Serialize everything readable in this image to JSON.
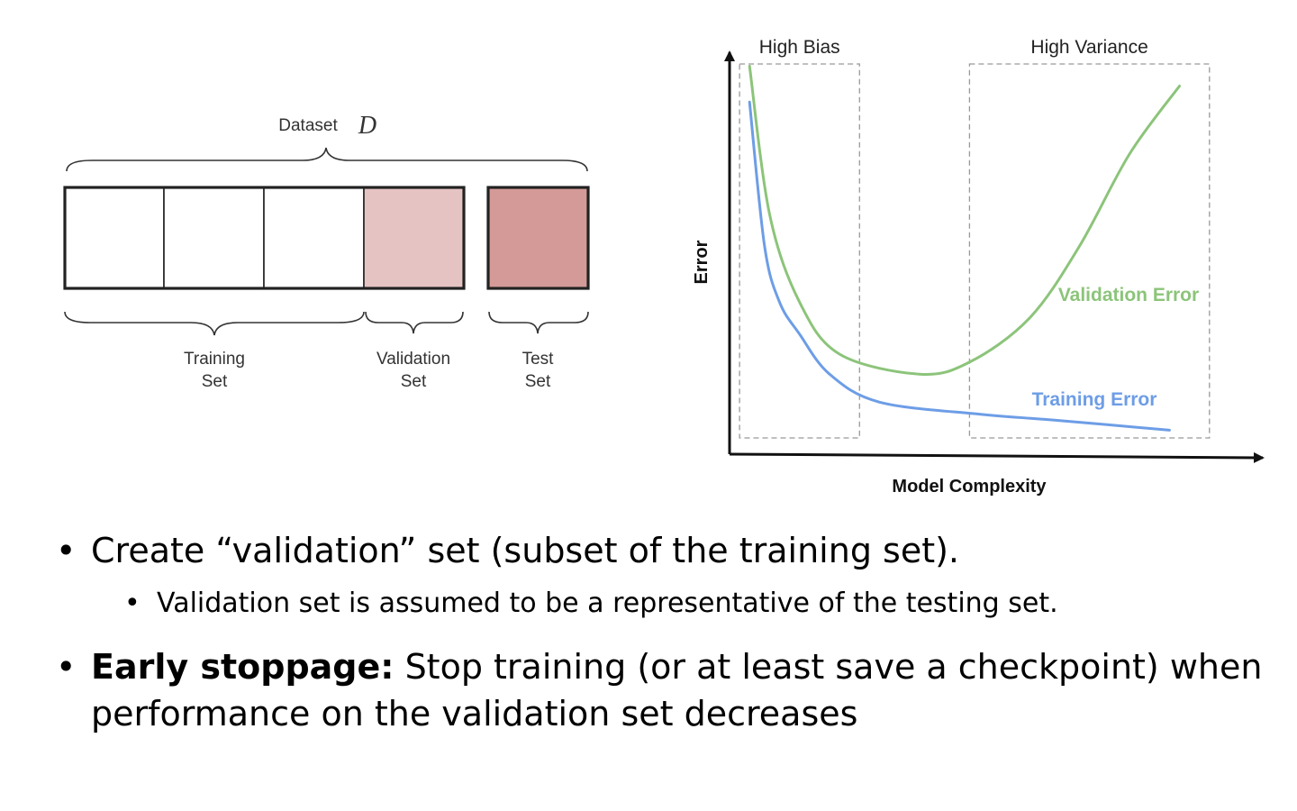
{
  "dataset": {
    "label": "Dataset",
    "symbol": "D",
    "training_label": [
      "Training",
      "Set"
    ],
    "validation_label": [
      "Validation",
      "Set"
    ],
    "test_label": [
      "Test",
      "Set"
    ],
    "colors": {
      "validation_fill": "#e6c3c3",
      "test_fill": "#d49a98",
      "stroke": "#222222"
    }
  },
  "chart_data": {
    "type": "line",
    "xlabel": "Model Complexity",
    "ylabel": "Error",
    "regions": [
      {
        "label": "High Bias",
        "x_range": [
          0.02,
          0.26
        ]
      },
      {
        "label": "High Variance",
        "x_range": [
          0.48,
          0.96
        ]
      }
    ],
    "series": [
      {
        "name": "Validation Error",
        "color": "#8cc47a",
        "points": [
          [
            0.04,
            0.97
          ],
          [
            0.08,
            0.6
          ],
          [
            0.14,
            0.38
          ],
          [
            0.22,
            0.25
          ],
          [
            0.38,
            0.2
          ],
          [
            0.48,
            0.23
          ],
          [
            0.6,
            0.34
          ],
          [
            0.7,
            0.52
          ],
          [
            0.8,
            0.75
          ],
          [
            0.9,
            0.92
          ]
        ]
      },
      {
        "name": "Training Error",
        "color": "#6d9de6",
        "points": [
          [
            0.04,
            0.88
          ],
          [
            0.07,
            0.52
          ],
          [
            0.1,
            0.38
          ],
          [
            0.14,
            0.3
          ],
          [
            0.2,
            0.2
          ],
          [
            0.3,
            0.13
          ],
          [
            0.5,
            0.1
          ],
          [
            0.65,
            0.085
          ],
          [
            0.88,
            0.06
          ]
        ]
      }
    ]
  },
  "bullets": {
    "b1": "Create “validation” set (subset of the training set).",
    "b1_sub": "Validation set is assumed to be a representative of the testing set.",
    "b2_bold": "Early stoppage:",
    "b2_rest": " Stop training (or at least save a checkpoint) when performance on the validation set decreases"
  },
  "bullet_symbol": "•"
}
